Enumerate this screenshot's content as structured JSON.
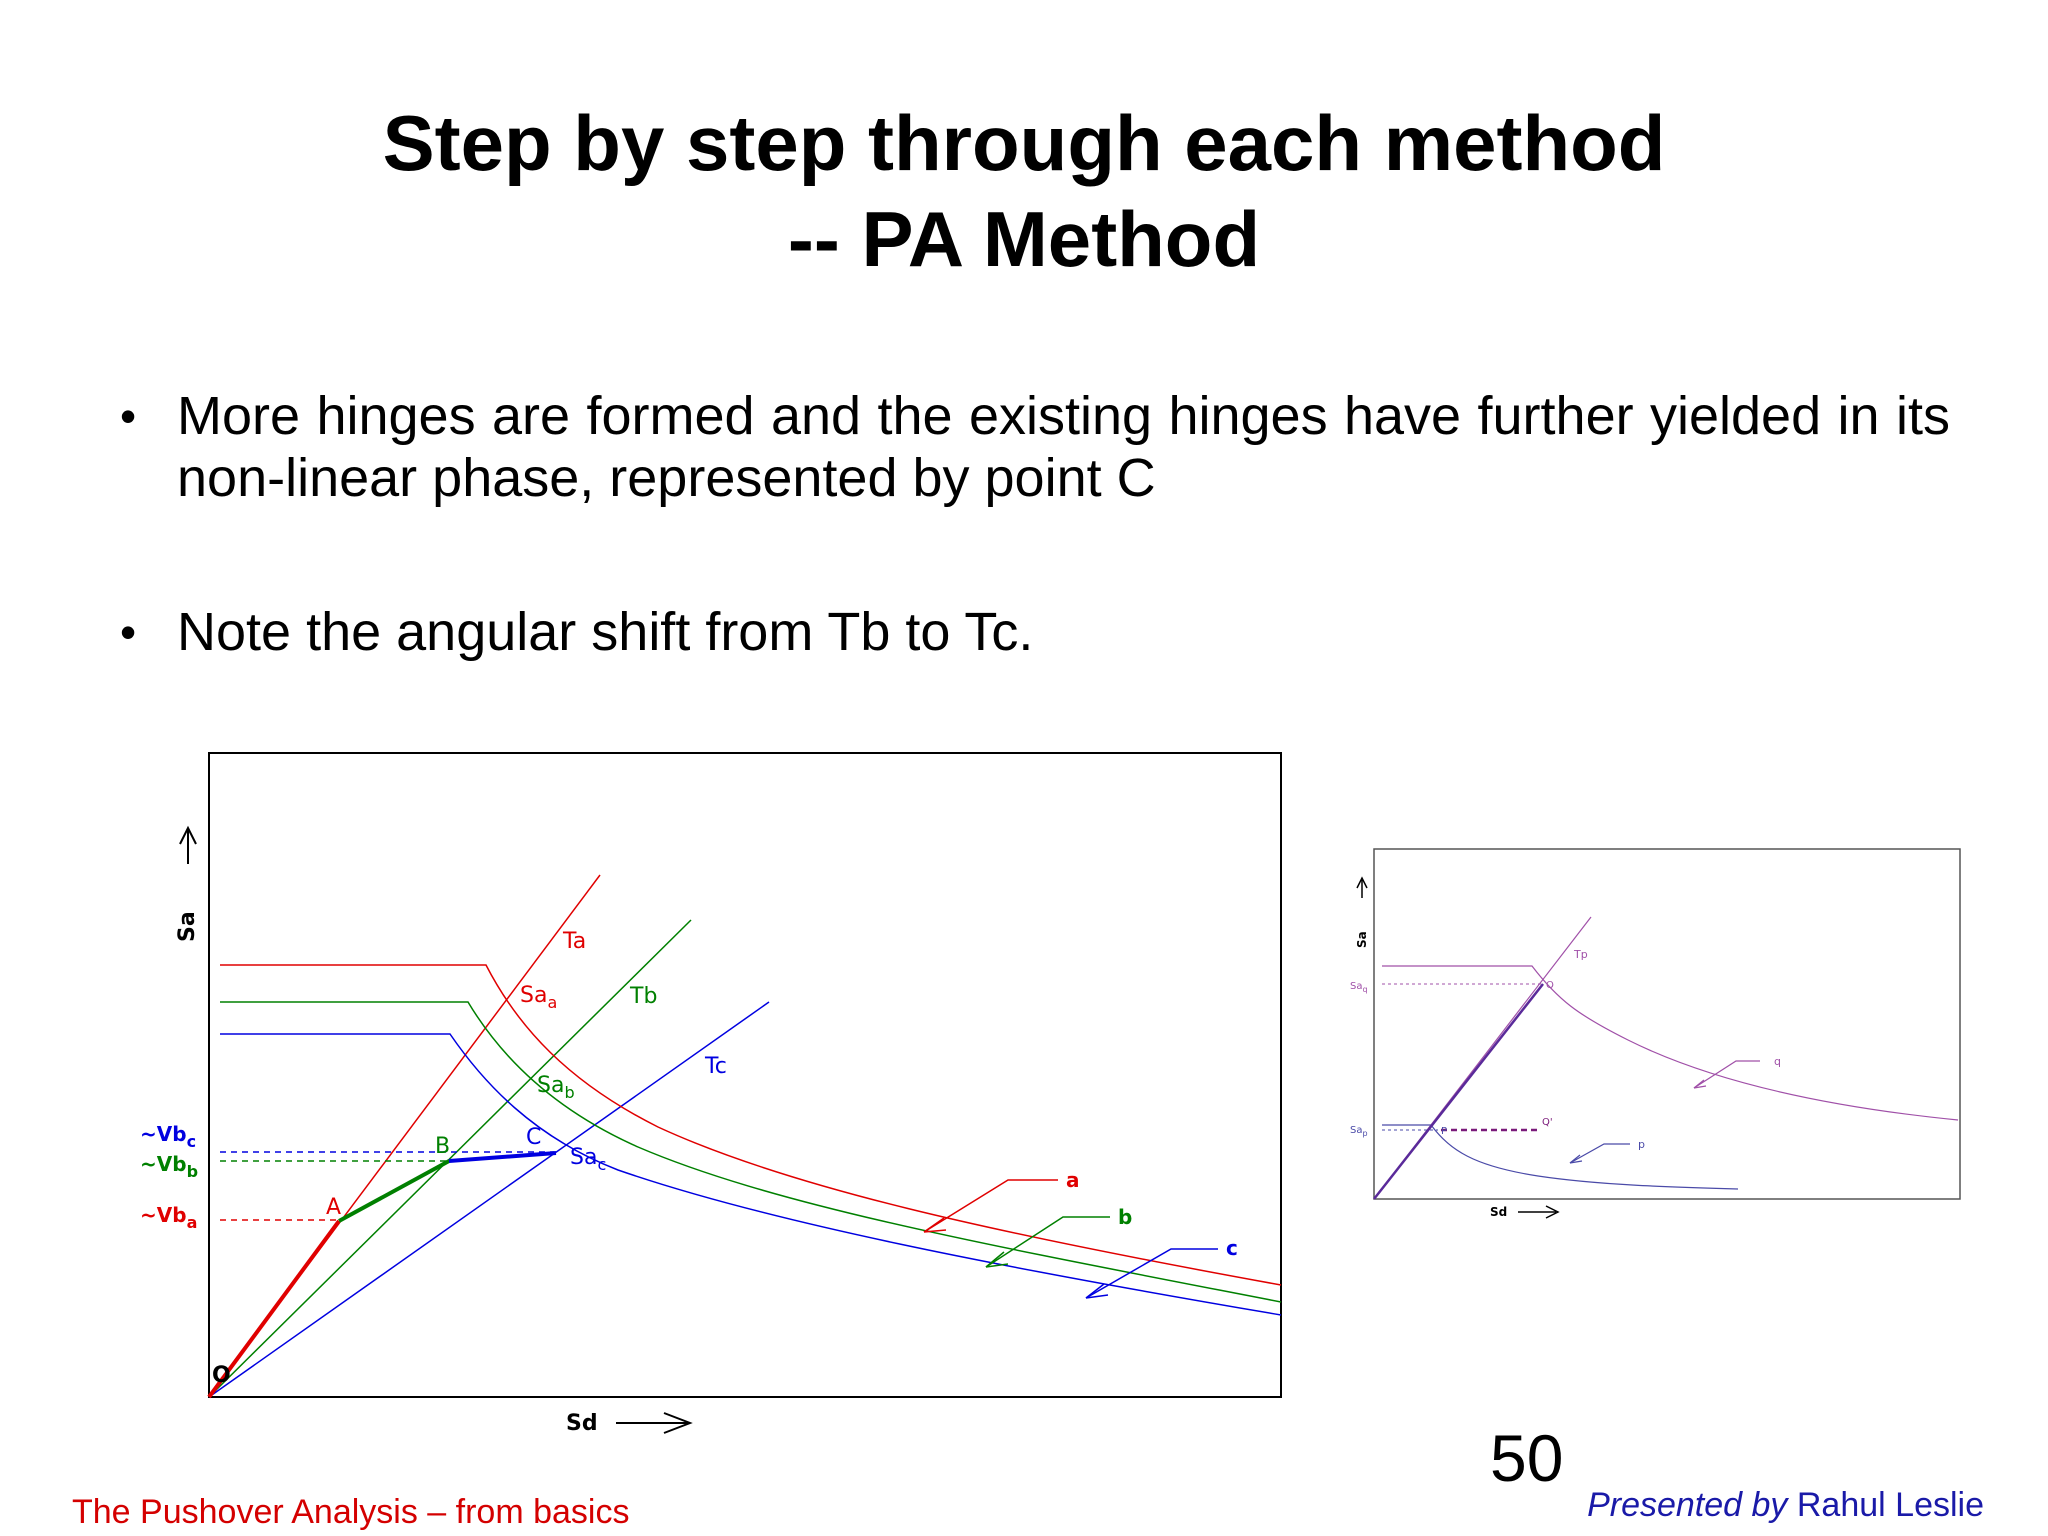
{
  "slide": {
    "title_line1": "Step by step through each method",
    "title_line2": "-- PA Method",
    "bullets": [
      "More hinges are formed and the existing hinges have further yielded in its non-linear phase, represented by point C",
      "Note the angular shift from Tb to Tc."
    ],
    "page_number": "50",
    "footer_left": "The Pushover Analysis – from basics",
    "footer_right_prefix": "Presented by",
    "footer_right_name": "Rahul Leslie"
  },
  "main_diagram": {
    "axis_y": "Sa",
    "axis_x": "Sd",
    "origin": "O",
    "points": {
      "a": "A",
      "b": "B",
      "c": "C"
    },
    "period_lines": {
      "a": "Ta",
      "b": "Tb",
      "c": "Tc"
    },
    "sa_labels": {
      "a": "Sa",
      "a_sub": "a",
      "b": "Sa",
      "b_sub": "b",
      "c": "Sa",
      "c_sub": "c"
    },
    "vb_labels": {
      "a": "~Vb",
      "a_sub": "a",
      "b": "~Vb",
      "b_sub": "b",
      "c": "~Vb",
      "c_sub": "c"
    },
    "curve_labels": {
      "a": "a",
      "b": "b",
      "c": "c"
    },
    "colors": {
      "a": "#e00000",
      "b": "#008000",
      "c": "#0000e0"
    }
  },
  "small_diagram": {
    "axis_y": "Sa",
    "axis_x": "Sd",
    "period_line": "Tp",
    "sa_q": "Sa",
    "sa_q_sub": "q",
    "sa_p": "Sa",
    "sa_p_sub": "p",
    "point_q": "Q",
    "point_p": "P",
    "point_q_prime": "Q'",
    "curve_q": "q",
    "curve_p": "p",
    "colors": {
      "q": "#a050a8",
      "p": "#4a4aa8",
      "line": "#5a2a9a"
    }
  }
}
